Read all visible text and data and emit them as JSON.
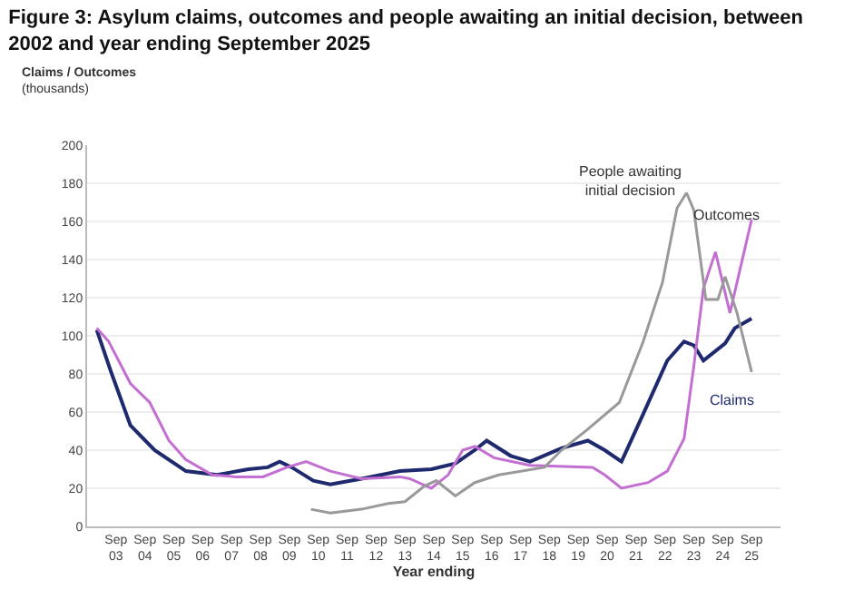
{
  "chart_data": {
    "type": "line",
    "title": "Figure 3: Asylum claims, outcomes and people awaiting an initial decision, between\n2002 and year ending September 2025",
    "ylabel": "Claims / Outcomes\n(thousands)",
    "xlabel": "Year ending",
    "series": [
      {
        "name": "Claims",
        "color": "#1f2a6e",
        "x": [
          "2003-01",
          "2003-07",
          "2004-03",
          "2005-01",
          "2006-02",
          "2007-03",
          "2008-04",
          "2008-12",
          "2009-05",
          "2009-10",
          "2010-07",
          "2011-02",
          "2012-03",
          "2013-07",
          "2014-08",
          "2015-06",
          "2016-02",
          "2016-07",
          "2017-05",
          "2018-01",
          "2019-02",
          "2020-01",
          "2020-08",
          "2021-03",
          "2021-12",
          "2022-10",
          "2023-05",
          "2023-09",
          "2024-01",
          "2024-10",
          "2025-02",
          "2025-09"
        ],
        "values": [
          103,
          81,
          53,
          40,
          29,
          27,
          30,
          31,
          34,
          31,
          24,
          22,
          25,
          29,
          30,
          33,
          40,
          45,
          37,
          34,
          41,
          45,
          40,
          34,
          59,
          87,
          97,
          95,
          87,
          96,
          104,
          109
        ]
      },
      {
        "name": "Outcomes",
        "color": "#c36fd1",
        "x": [
          "2003-01",
          "2003-06",
          "2004-03",
          "2004-11",
          "2005-07",
          "2006-02",
          "2007-01",
          "2007-11",
          "2008-10",
          "2009-08",
          "2010-04",
          "2011-02",
          "2012-03",
          "2013-07",
          "2013-11",
          "2014-08",
          "2015-03",
          "2015-09",
          "2016-02",
          "2016-10",
          "2018-01",
          "2020-03",
          "2020-08",
          "2021-03",
          "2022-02",
          "2022-10",
          "2023-05",
          "2023-09",
          "2024-01",
          "2024-06",
          "2024-12",
          "2025-09"
        ],
        "values": [
          104,
          97,
          75,
          65,
          45,
          35,
          27,
          26,
          26,
          31,
          34,
          29,
          25,
          26,
          25,
          20,
          27,
          40,
          42,
          36,
          32,
          31,
          27,
          20,
          23,
          29,
          46,
          84,
          125,
          144,
          112,
          161
        ]
      },
      {
        "name": "People awaiting\ninitial decision",
        "color": "#999999",
        "x": [
          "2010-06",
          "2011-02",
          "2012-03",
          "2013-02",
          "2013-09",
          "2014-05",
          "2014-10",
          "2015-06",
          "2016-02",
          "2016-12",
          "2018-07",
          "2019-02",
          "2020-01",
          "2021-02",
          "2021-12",
          "2022-08",
          "2023-02",
          "2023-06",
          "2023-09",
          "2024-02",
          "2024-07",
          "2024-10",
          "2025-03",
          "2025-09"
        ],
        "values": [
          9,
          7,
          9,
          12,
          13,
          21,
          24,
          16,
          23,
          27,
          31,
          40,
          51,
          65,
          97,
          128,
          167,
          175,
          166,
          119,
          119,
          131,
          112,
          81
        ]
      }
    ],
    "xlim": [
      "2002-09",
      "2026-09"
    ],
    "xticks": [
      {
        "value": "2003-09",
        "label": "Sep\n03"
      },
      {
        "value": "2004-09",
        "label": "Sep\n04"
      },
      {
        "value": "2005-09",
        "label": "Sep\n05"
      },
      {
        "value": "2006-09",
        "label": "Sep\n06"
      },
      {
        "value": "2007-09",
        "label": "Sep\n07"
      },
      {
        "value": "2008-09",
        "label": "Sep\n08"
      },
      {
        "value": "2009-09",
        "label": "Sep\n09"
      },
      {
        "value": "2010-09",
        "label": "Sep\n10"
      },
      {
        "value": "2011-09",
        "label": "Sep\n11"
      },
      {
        "value": "2012-09",
        "label": "Sep\n12"
      },
      {
        "value": "2013-09",
        "label": "Sep\n13"
      },
      {
        "value": "2014-09",
        "label": "Sep\n14"
      },
      {
        "value": "2015-09",
        "label": "Sep\n15"
      },
      {
        "value": "2016-09",
        "label": "Sep\n16"
      },
      {
        "value": "2017-09",
        "label": "Sep\n17"
      },
      {
        "value": "2018-09",
        "label": "Sep\n18"
      },
      {
        "value": "2019-09",
        "label": "Sep\n19"
      },
      {
        "value": "2020-09",
        "label": "Sep\n20"
      },
      {
        "value": "2021-09",
        "label": "Sep\n21"
      },
      {
        "value": "2022-09",
        "label": "Sep\n22"
      },
      {
        "value": "2023-09",
        "label": "Sep\n23"
      },
      {
        "value": "2024-09",
        "label": "Sep\n24"
      },
      {
        "value": "2025-09",
        "label": "Sep\n25"
      }
    ],
    "ylim": [
      0,
      200
    ],
    "yticks": [
      0,
      20,
      40,
      60,
      80,
      100,
      120,
      140,
      160,
      180,
      200
    ],
    "grid": "y",
    "legend": false,
    "marker": "none",
    "line_style": "solid"
  }
}
